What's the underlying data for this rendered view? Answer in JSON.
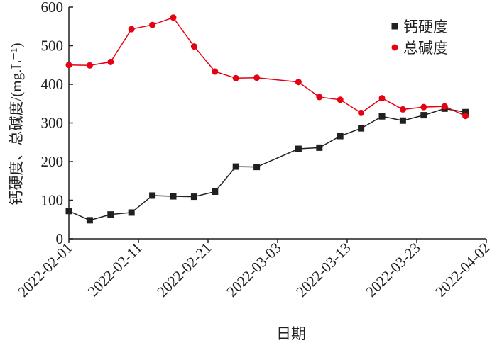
{
  "chart_data": {
    "type": "line",
    "x_label": "日期",
    "y_label": "钙硬度、总碱度/(mg.L⁻¹)",
    "x": [
      "2022-02-01",
      "2022-02-04",
      "2022-02-07",
      "2022-02-10",
      "2022-02-13",
      "2022-02-16",
      "2022-02-19",
      "2022-02-22",
      "2022-02-25",
      "2022-02-28",
      "2022-03-06",
      "2022-03-09",
      "2022-03-12",
      "2022-03-15",
      "2022-03-18",
      "2022-03-21",
      "2022-03-24",
      "2022-03-27",
      "2022-03-30"
    ],
    "series": [
      {
        "name": "钙硬度",
        "color": "#231f20",
        "marker": "square",
        "values": [
          72,
          48,
          63,
          68,
          112,
          110,
          109,
          122,
          187,
          186,
          233,
          236,
          266,
          286,
          317,
          306,
          320,
          337,
          328
        ]
      },
      {
        "name": "总碱度",
        "color": "#e60012",
        "marker": "circle",
        "values": [
          450,
          449,
          458,
          543,
          554,
          573,
          498,
          433,
          416,
          417,
          406,
          367,
          360,
          326,
          364,
          335,
          341,
          343,
          318
        ]
      }
    ],
    "xlim": [
      "2022-02-01",
      "2022-04-02"
    ],
    "xticks": [
      "2022-02-01",
      "2022-02-11",
      "2022-02-21",
      "2022-03-03",
      "2022-03-13",
      "2022-03-23",
      "2022-04-02"
    ],
    "ylim": [
      0,
      600
    ],
    "yticks": [
      0,
      100,
      200,
      300,
      400,
      500,
      600
    ],
    "legend": "upper right"
  }
}
